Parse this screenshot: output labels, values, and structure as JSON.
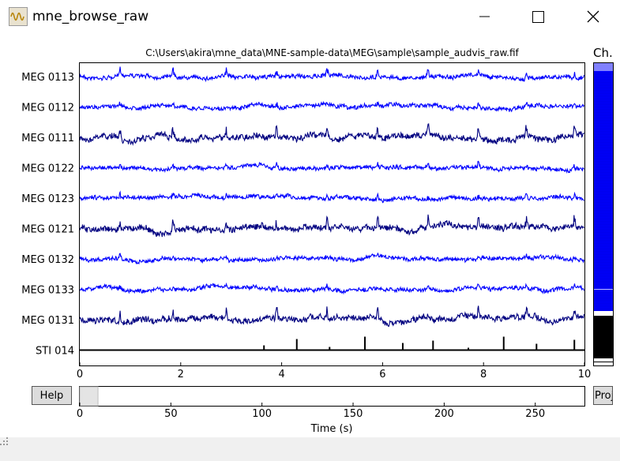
{
  "window": {
    "title": "mne_browse_raw",
    "icon": "waveform-icon"
  },
  "plot": {
    "title": "C:\\Users\\akira\\mne_data\\MNE-sample-data\\MEG\\sample\\sample_audvis_raw.fif",
    "channels": [
      {
        "name": "MEG 0113",
        "color": "#0000ff"
      },
      {
        "name": "MEG 0112",
        "color": "#0000ff"
      },
      {
        "name": "MEG 0111",
        "color": "#000080"
      },
      {
        "name": "MEG 0122",
        "color": "#0000ff"
      },
      {
        "name": "MEG 0123",
        "color": "#0000ff"
      },
      {
        "name": "MEG 0121",
        "color": "#000080"
      },
      {
        "name": "MEG 0132",
        "color": "#0000ff"
      },
      {
        "name": "MEG 0133",
        "color": "#0000ff"
      },
      {
        "name": "MEG 0131",
        "color": "#000080"
      },
      {
        "name": "STI 014",
        "color": "#000000"
      }
    ],
    "xticks": [
      "0",
      "2",
      "4",
      "6",
      "8",
      "10"
    ],
    "x_range": [
      0,
      10
    ],
    "stim_events": [
      3.65,
      4.3,
      4.95,
      5.65,
      6.4,
      7.0,
      7.7,
      8.4,
      9.05,
      9.8
    ]
  },
  "channel_panel": {
    "title": "Ch."
  },
  "buttons": {
    "help": "Help",
    "proj": "Proj"
  },
  "time_slider": {
    "ticks": [
      "0",
      "50",
      "100",
      "150",
      "200",
      "250"
    ],
    "range": [
      0,
      277
    ],
    "window_start": 0,
    "window_length": 10,
    "xlabel": "Time (s)"
  },
  "colors": {
    "meg_grad_blue": "#0000ff",
    "meg_mag_navy": "#000080",
    "stim_black": "#000000"
  }
}
